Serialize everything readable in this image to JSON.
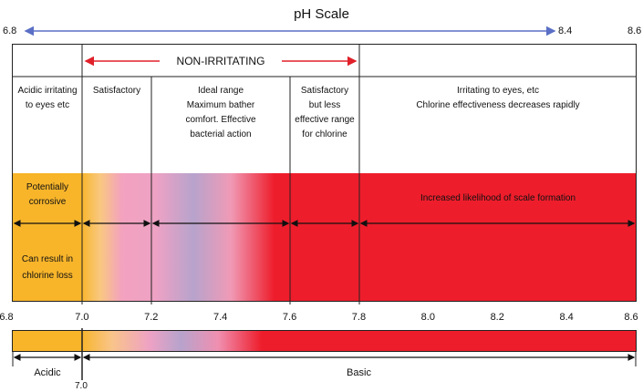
{
  "title": "pH Scale",
  "scale": {
    "min": 6.8,
    "max": 8.6,
    "top_marker": 8.4
  },
  "top_labels": {
    "left": "6.8",
    "mid": "8.4",
    "right": "8.6"
  },
  "non_irritating": "NON-IRRITATING",
  "columns": [
    {
      "range": [
        6.8,
        7.0
      ],
      "text": "Acidic irritating to eyes etc"
    },
    {
      "range": [
        7.0,
        7.2
      ],
      "text": "Satisfactory"
    },
    {
      "range": [
        7.2,
        7.6
      ],
      "text": "Ideal range Maximum bather comfort. Effective bacterial action"
    },
    {
      "range": [
        7.6,
        7.8
      ],
      "text": "Satisfactory but less effective range for chlorine"
    },
    {
      "range": [
        7.8,
        8.6
      ],
      "line1": "Irritating to eyes, etc",
      "line2": "Chlorine effectiveness decreases rapidly"
    }
  ],
  "band_notes": {
    "corrosive": "Potentially corrosive",
    "chlorine_loss": "Can result in chlorine loss",
    "scale": "Increased likelihood of scale formation"
  },
  "axis_ticks": [
    "6.8",
    "7.0",
    "7.2",
    "7.4",
    "7.6",
    "7.8",
    "8.0",
    "8.2",
    "8.4",
    "8.6"
  ],
  "bottom": {
    "acidic": "Acidic",
    "basic": "Basic",
    "divider_label": "7.0"
  },
  "colors": {
    "acidic": "#f8b52a",
    "alkaline": "#ee1d2b",
    "ideal": "#b8a0cc",
    "pink": "#f3a2bf",
    "title_arrow": "#5a6fc5",
    "non_irritating_arrow": "#e0202a"
  }
}
